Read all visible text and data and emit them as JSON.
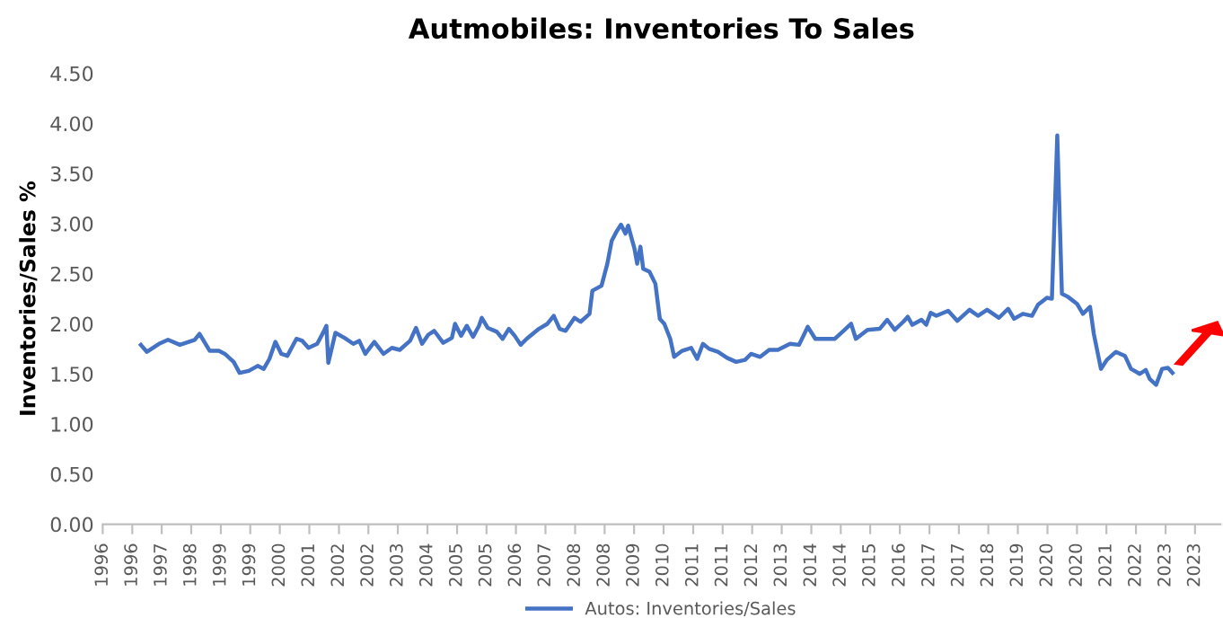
{
  "chart_data": {
    "type": "line",
    "title": "Autmobiles: Inventories To Sales",
    "ylabel": "Inventories/Sales %",
    "xlim": [
      "1996-01-01",
      "2024-05-25"
    ],
    "ylim": [
      0,
      4.5
    ],
    "yticks": [
      {
        "value": 0,
        "label": "0.00"
      },
      {
        "value": 0.5,
        "label": "0.50"
      },
      {
        "value": 1,
        "label": "1.00"
      },
      {
        "value": 1.5,
        "label": "1.50"
      },
      {
        "value": 2,
        "label": "2.00"
      },
      {
        "value": 2.5,
        "label": "2.50"
      },
      {
        "value": 3,
        "label": "3.00"
      },
      {
        "value": 3.5,
        "label": "3.50"
      },
      {
        "value": 4,
        "label": "4.00"
      },
      {
        "value": 4.5,
        "label": "4.50"
      }
    ],
    "xticks": [
      {
        "value": "1996-01-01",
        "label": "1996"
      },
      {
        "value": "1996-10-01",
        "label": "1996"
      },
      {
        "value": "1997-07-01",
        "label": "1997"
      },
      {
        "value": "1998-04-01",
        "label": "1998"
      },
      {
        "value": "1999-01-01",
        "label": "1999"
      },
      {
        "value": "1999-10-01",
        "label": "1999"
      },
      {
        "value": "2000-07-01",
        "label": "2000"
      },
      {
        "value": "2001-04-01",
        "label": "2001"
      },
      {
        "value": "2002-01-01",
        "label": "2002"
      },
      {
        "value": "2002-10-01",
        "label": "2002"
      },
      {
        "value": "2003-07-01",
        "label": "2003"
      },
      {
        "value": "2004-04-01",
        "label": "2004"
      },
      {
        "value": "2005-01-01",
        "label": "2005"
      },
      {
        "value": "2005-10-01",
        "label": "2005"
      },
      {
        "value": "2006-07-01",
        "label": "2006"
      },
      {
        "value": "2007-04-01",
        "label": "2007"
      },
      {
        "value": "2008-01-01",
        "label": "2008"
      },
      {
        "value": "2008-10-01",
        "label": "2008"
      },
      {
        "value": "2009-07-01",
        "label": "2009"
      },
      {
        "value": "2010-04-01",
        "label": "2010"
      },
      {
        "value": "2011-01-01",
        "label": "2011"
      },
      {
        "value": "2011-10-01",
        "label": "2011"
      },
      {
        "value": "2012-07-01",
        "label": "2012"
      },
      {
        "value": "2013-04-01",
        "label": "2013"
      },
      {
        "value": "2014-01-01",
        "label": "2014"
      },
      {
        "value": "2014-10-01",
        "label": "2014"
      },
      {
        "value": "2015-07-01",
        "label": "2015"
      },
      {
        "value": "2016-04-01",
        "label": "2016"
      },
      {
        "value": "2017-01-01",
        "label": "2017"
      },
      {
        "value": "2017-10-01",
        "label": "2017"
      },
      {
        "value": "2018-07-01",
        "label": "2018"
      },
      {
        "value": "2019-04-01",
        "label": "2019"
      },
      {
        "value": "2020-01-01",
        "label": "2020"
      },
      {
        "value": "2020-10-01",
        "label": "2020"
      },
      {
        "value": "2021-07-01",
        "label": "2021"
      },
      {
        "value": "2022-04-01",
        "label": "2022"
      },
      {
        "value": "2023-01-01",
        "label": "2023"
      },
      {
        "value": "2023-10-01",
        "label": "2023"
      }
    ],
    "grid": false,
    "legend": "bottom",
    "marker": "none",
    "line_style": "solid",
    "series": [
      {
        "name": "Autos: Inventories/Sales",
        "color": "#4472c4",
        "x": [
          "1996-12-20",
          "1997-02-14",
          "1997-06-06",
          "1997-08-29",
          "1997-12-17",
          "1998-05-03",
          "1998-06-17",
          "1998-09-20",
          "1998-12-13",
          "1999-02-07",
          "1999-04-30",
          "1999-06-24",
          "1999-09-17",
          "1999-12-09",
          "2000-02-03",
          "2000-03-27",
          "2000-05-21",
          "2000-07-15",
          "2000-09-09",
          "2000-12-02",
          "2001-01-26",
          "2001-03-24",
          "2001-06-13",
          "2001-08-11",
          "2001-09-06",
          "2001-09-24",
          "2001-11-29",
          "2002-02-21",
          "2002-05-14",
          "2002-07-08",
          "2002-09-02",
          "2002-11-25",
          "2003-02-18",
          "2003-05-07",
          "2003-07-19",
          "2003-10-23",
          "2003-12-17",
          "2004-02-11",
          "2004-04-08",
          "2004-06-02",
          "2004-08-25",
          "2004-11-14",
          "2004-12-13",
          "2005-02-07",
          "2005-04-01",
          "2005-05-29",
          "2005-07-23",
          "2005-08-18",
          "2005-10-12",
          "2006-01-05",
          "2006-02-28",
          "2006-04-26",
          "2006-06-20",
          "2006-08-14",
          "2006-10-08",
          "2007-01-30",
          "2007-04-19",
          "2007-06-17",
          "2007-08-11",
          "2007-10-05",
          "2007-12-27",
          "2008-02-21",
          "2008-05-14",
          "2008-06-09",
          "2008-09-02",
          "2008-10-26",
          "2008-12-06",
          "2009-01-19",
          "2009-03-02",
          "2009-04-12",
          "2009-05-07",
          "2009-07-05",
          "2009-07-30",
          "2009-08-29",
          "2009-09-24",
          "2009-11-21",
          "2010-01-15",
          "2010-02-25",
          "2010-04-08",
          "2010-06-02",
          "2010-07-08",
          "2010-09-20",
          "2010-12-13",
          "2011-02-07",
          "2011-04-01",
          "2011-05-29",
          "2011-08-18",
          "2011-11-11",
          "2012-02-03",
          "2012-04-26",
          "2012-06-20",
          "2012-09-13",
          "2012-12-06",
          "2013-02-25",
          "2013-06-17",
          "2013-09-09",
          "2013-11-29",
          "2014-02-07",
          "2014-05-14",
          "2014-08-07",
          "2014-10-26",
          "2015-01-05",
          "2015-02-18",
          "2015-06-06",
          "2015-09-27",
          "2015-12-06",
          "2016-02-14",
          "2016-05-03",
          "2016-06-13",
          "2016-07-26",
          "2016-10-19",
          "2016-12-02",
          "2017-01-12",
          "2017-03-06",
          "2017-06-24",
          "2017-09-17",
          "2018-01-08",
          "2018-03-27",
          "2018-06-20",
          "2018-10-08",
          "2019-01-01",
          "2019-02-25",
          "2019-05-18",
          "2019-08-11",
          "2019-10-05",
          "2019-12-27",
          "2020-02-11",
          "2020-04-01",
          "2020-05-14",
          "2020-07-08",
          "2020-10-01",
          "2020-11-25",
          "2021-01-30",
          "2021-03-06",
          "2021-05-11",
          "2021-07-05",
          "2021-09-27",
          "2021-12-20",
          "2022-02-14",
          "2022-05-07",
          "2022-07-01",
          "2022-08-07",
          "2022-10-05",
          "2022-11-29",
          "2023-01-23",
          "2023-03-06"
        ],
        "values": [
          1.79,
          1.72,
          1.8,
          1.84,
          1.79,
          1.84,
          1.9,
          1.73,
          1.73,
          1.7,
          1.62,
          1.51,
          1.53,
          1.58,
          1.55,
          1.65,
          1.82,
          1.7,
          1.68,
          1.85,
          1.83,
          1.76,
          1.8,
          1.92,
          1.98,
          1.61,
          1.91,
          1.86,
          1.8,
          1.83,
          1.7,
          1.82,
          1.7,
          1.76,
          1.74,
          1.83,
          1.96,
          1.8,
          1.89,
          1.93,
          1.81,
          1.86,
          2.0,
          1.88,
          1.98,
          1.87,
          1.98,
          2.06,
          1.96,
          1.92,
          1.85,
          1.95,
          1.88,
          1.79,
          1.85,
          1.95,
          2.0,
          2.08,
          1.95,
          1.93,
          2.06,
          2.02,
          2.1,
          2.33,
          2.38,
          2.6,
          2.83,
          2.92,
          2.99,
          2.9,
          2.98,
          2.75,
          2.6,
          2.77,
          2.55,
          2.52,
          2.4,
          2.05,
          2.0,
          1.85,
          1.67,
          1.73,
          1.76,
          1.65,
          1.8,
          1.75,
          1.72,
          1.66,
          1.62,
          1.64,
          1.7,
          1.67,
          1.74,
          1.74,
          1.8,
          1.79,
          1.97,
          1.85,
          1.85,
          1.85,
          1.93,
          2.0,
          1.85,
          1.94,
          1.95,
          2.04,
          1.94,
          2.02,
          2.07,
          1.99,
          2.04,
          1.99,
          2.11,
          2.08,
          2.13,
          2.03,
          2.14,
          2.08,
          2.14,
          2.06,
          2.15,
          2.05,
          2.1,
          2.08,
          2.19,
          2.26,
          2.25,
          3.88,
          2.3,
          2.27,
          2.2,
          2.1,
          2.17,
          1.9,
          1.55,
          1.64,
          1.72,
          1.68,
          1.55,
          1.5,
          1.54,
          1.45,
          1.39,
          1.55,
          1.56,
          1.51
        ]
      }
    ]
  }
}
